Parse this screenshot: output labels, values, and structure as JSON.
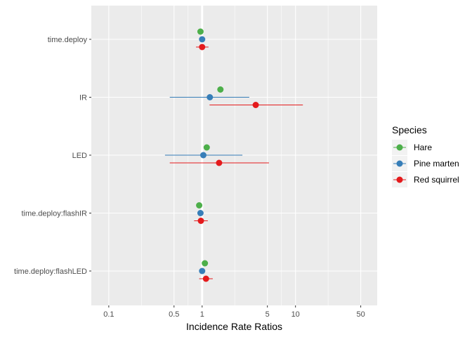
{
  "chart_data": {
    "type": "scatter",
    "subtype": "forest-plot",
    "title": "",
    "xlabel": "Incidence Rate Ratios",
    "ylabel": "",
    "x_scale": "log10",
    "xlim": [
      0.065,
      75
    ],
    "x_ticks": [
      0.1,
      0.5,
      1,
      5,
      10,
      50
    ],
    "x_tick_labels": [
      "0.1",
      "0.5",
      "1",
      "5",
      "10",
      "50"
    ],
    "reference_line": 1,
    "grid": true,
    "legend_position": "right",
    "legend_title": "Species",
    "categories": [
      "time.deploy",
      "IR",
      "LED",
      "time.deploy:flashIR",
      "time.deploy:flashLED"
    ],
    "series": [
      {
        "name": "Hare",
        "color": "#4daf4a",
        "values": [
          0.96,
          1.57,
          1.12,
          0.93,
          1.07
        ],
        "ci_low": [
          null,
          null,
          null,
          null,
          null
        ],
        "ci_high": [
          null,
          null,
          null,
          null,
          null
        ]
      },
      {
        "name": "Pine marten",
        "color": "#377eb8",
        "values": [
          1.0,
          1.21,
          1.03,
          0.96,
          1.0
        ],
        "ci_low": [
          null,
          0.45,
          0.4,
          0.9,
          0.95
        ],
        "ci_high": [
          null,
          3.2,
          2.7,
          1.03,
          1.06
        ]
      },
      {
        "name": "Red squirrel",
        "color": "#e41a1c",
        "values": [
          1.0,
          3.75,
          1.52,
          0.97,
          1.1
        ],
        "ci_low": [
          0.86,
          1.2,
          0.45,
          0.82,
          0.93
        ],
        "ci_high": [
          1.17,
          12.0,
          5.2,
          1.15,
          1.3
        ]
      }
    ]
  }
}
